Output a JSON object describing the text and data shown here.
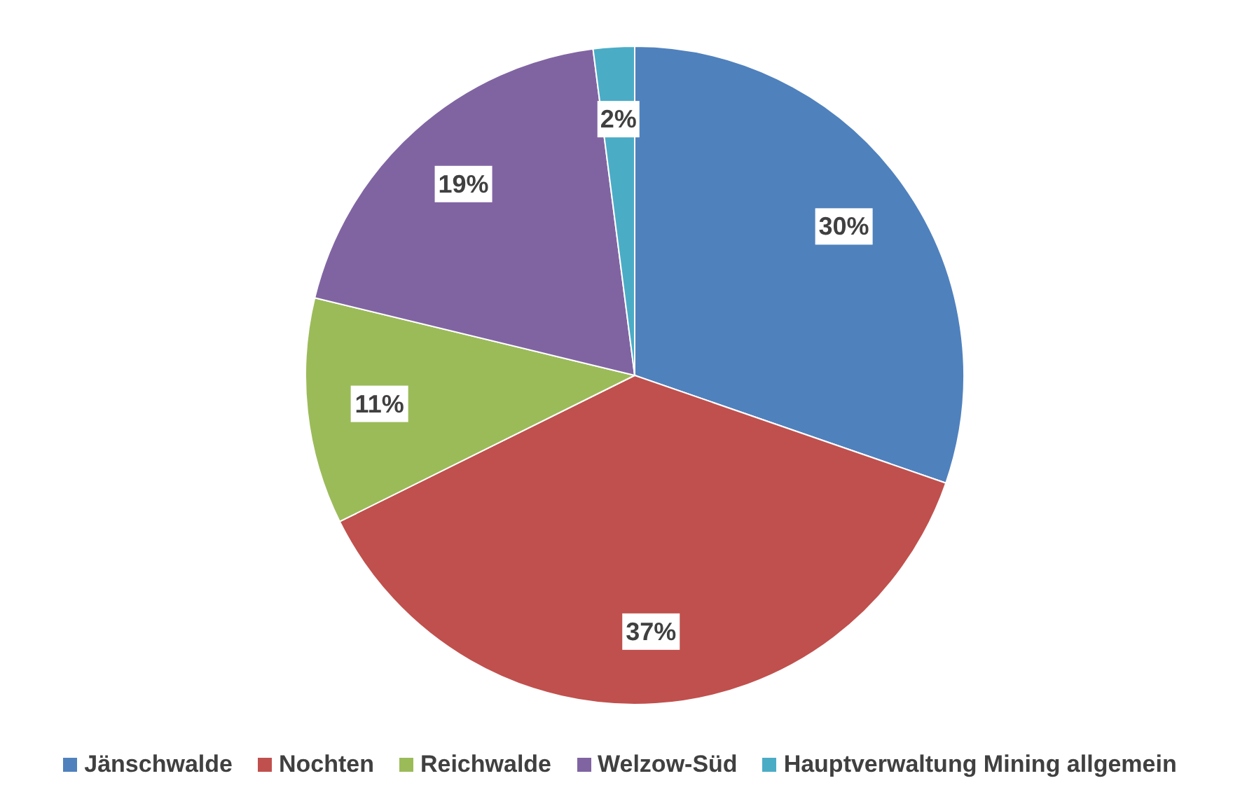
{
  "chart_data": {
    "type": "pie",
    "categories": [
      "Jänschwalde",
      "Nochten",
      "Reichwalde",
      "Welzow-Süd",
      "Hauptverwaltung Mining allgemein"
    ],
    "values": [
      30,
      37,
      11,
      19,
      2
    ],
    "value_labels": [
      "30%",
      "37%",
      "11%",
      "19%",
      "2%"
    ],
    "colors": [
      "#4f81bd",
      "#c0504d",
      "#9bbb59",
      "#8064a2",
      "#4bacc6"
    ],
    "legend": "bottom"
  }
}
